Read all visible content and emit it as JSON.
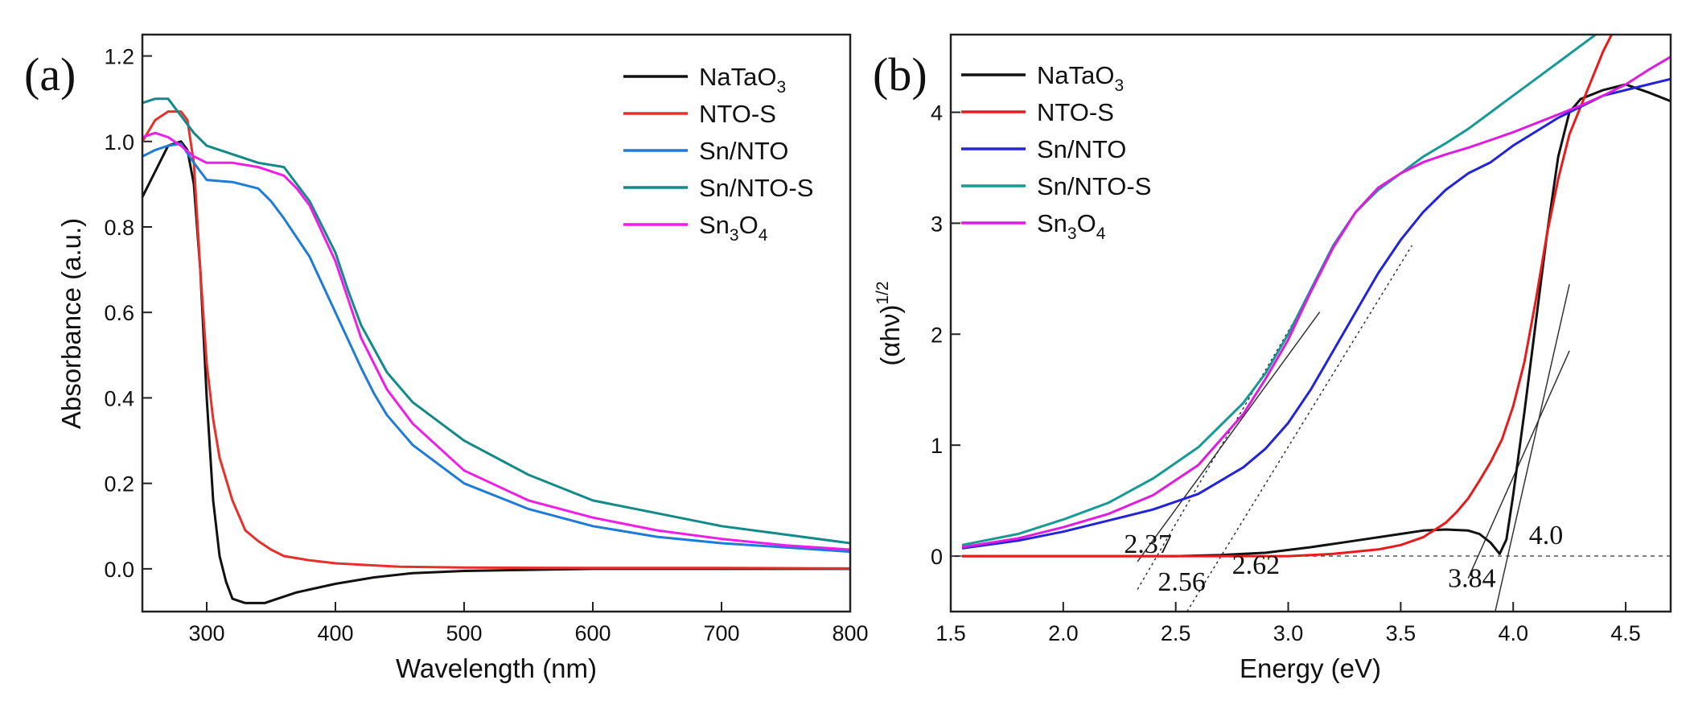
{
  "chart_data": [
    {
      "panel": "(a)",
      "type": "line",
      "xlabel": "Wavelength (nm)",
      "ylabel": "Absorbance (a.u.)",
      "xlim": [
        250,
        800
      ],
      "ylim": [
        -0.1,
        1.25
      ],
      "x_ticks": [
        300,
        400,
        500,
        600,
        700,
        800
      ],
      "y_ticks": [
        0.0,
        0.2,
        0.4,
        0.6,
        0.8,
        1.0,
        1.2
      ],
      "legend": "top-right",
      "series": [
        {
          "name": "NaTaO3",
          "label_main": "NaTaO",
          "label_sub": "3",
          "label_end": "",
          "color": "#111111",
          "x": [
            250,
            260,
            270,
            280,
            285,
            290,
            295,
            300,
            305,
            310,
            315,
            320,
            330,
            345,
            350,
            370,
            400,
            430,
            460,
            500,
            600,
            700,
            800
          ],
          "y": [
            0.87,
            0.93,
            0.99,
            1.0,
            0.98,
            0.9,
            0.7,
            0.4,
            0.16,
            0.03,
            -0.03,
            -0.07,
            -0.08,
            -0.08,
            -0.075,
            -0.055,
            -0.035,
            -0.02,
            -0.01,
            -0.005,
            0.0,
            0.0,
            0.0
          ]
        },
        {
          "name": "NTO-S",
          "label_main": "NTO-S",
          "label_sub": "",
          "label_end": "",
          "color": "#e8302a",
          "x": [
            250,
            260,
            270,
            280,
            285,
            290,
            295,
            300,
            305,
            310,
            320,
            330,
            340,
            350,
            360,
            380,
            400,
            430,
            450,
            500,
            600,
            700,
            800
          ],
          "y": [
            1.0,
            1.05,
            1.07,
            1.07,
            1.05,
            0.95,
            0.7,
            0.48,
            0.35,
            0.26,
            0.16,
            0.09,
            0.065,
            0.045,
            0.03,
            0.02,
            0.013,
            0.008,
            0.005,
            0.003,
            0.002,
            0.002,
            0.001
          ]
        },
        {
          "name": "Sn/NTO",
          "label_main": "Sn/NTO",
          "label_sub": "",
          "label_end": "",
          "color": "#1f7bd8",
          "x": [
            250,
            260,
            270,
            280,
            290,
            300,
            320,
            340,
            350,
            360,
            380,
            400,
            420,
            430,
            440,
            460,
            500,
            550,
            600,
            650,
            700,
            750,
            800
          ],
          "y": [
            0.965,
            0.98,
            0.99,
            0.995,
            0.95,
            0.91,
            0.905,
            0.89,
            0.86,
            0.82,
            0.73,
            0.6,
            0.47,
            0.41,
            0.36,
            0.29,
            0.2,
            0.14,
            0.1,
            0.075,
            0.06,
            0.05,
            0.04
          ]
        },
        {
          "name": "Sn/NTO-S",
          "label_main": "Sn/NTO-S",
          "label_sub": "",
          "label_end": "",
          "color": "#128a8a",
          "x": [
            250,
            260,
            270,
            280,
            290,
            300,
            320,
            340,
            360,
            370,
            380,
            400,
            410,
            420,
            440,
            460,
            500,
            550,
            600,
            650,
            700,
            750,
            800
          ],
          "y": [
            1.09,
            1.1,
            1.1,
            1.06,
            1.02,
            0.99,
            0.97,
            0.95,
            0.94,
            0.9,
            0.86,
            0.74,
            0.65,
            0.57,
            0.46,
            0.39,
            0.3,
            0.22,
            0.16,
            0.13,
            0.1,
            0.08,
            0.06
          ]
        },
        {
          "name": "Sn3O4",
          "label_main": "Sn",
          "label_sub": "3",
          "label_end": "O4",
          "color": "#ee1ee8",
          "x": [
            250,
            260,
            270,
            280,
            290,
            300,
            320,
            340,
            360,
            370,
            380,
            400,
            410,
            420,
            440,
            460,
            500,
            550,
            600,
            650,
            700,
            750,
            800
          ],
          "y": [
            1.01,
            1.02,
            1.01,
            0.99,
            0.965,
            0.95,
            0.95,
            0.94,
            0.92,
            0.89,
            0.85,
            0.72,
            0.63,
            0.54,
            0.42,
            0.34,
            0.23,
            0.16,
            0.12,
            0.09,
            0.07,
            0.055,
            0.045
          ]
        }
      ]
    },
    {
      "panel": "(b)",
      "type": "line",
      "xlabel": "Energy (eV)",
      "ylabel": "(αhν)",
      "ylabel_sup": "1/2",
      "xlim": [
        1.5,
        4.7
      ],
      "ylim": [
        -0.5,
        4.7
      ],
      "x_ticks": [
        "1.5",
        "2.0",
        "2.5",
        "3.0",
        "3.5",
        "4.0",
        "4.5"
      ],
      "y_ticks": [
        0,
        1,
        2,
        3,
        4
      ],
      "legend": "top-left",
      "series": [
        {
          "name": "NaTaO3",
          "label_main": "NaTaO",
          "label_sub": "3",
          "label_end": "",
          "color": "#111111",
          "x": [
            1.55,
            2.0,
            2.5,
            2.7,
            2.9,
            3.1,
            3.3,
            3.5,
            3.6,
            3.7,
            3.8,
            3.85,
            3.9,
            3.94,
            3.97,
            4.0,
            4.05,
            4.1,
            4.15,
            4.2,
            4.25,
            4.3,
            4.4,
            4.5,
            4.6,
            4.7
          ],
          "y": [
            0.0,
            0.0,
            0.0,
            0.01,
            0.03,
            0.08,
            0.14,
            0.2,
            0.23,
            0.24,
            0.23,
            0.2,
            0.12,
            0.02,
            0.15,
            0.55,
            1.3,
            2.1,
            2.9,
            3.6,
            4.0,
            4.12,
            4.2,
            4.25,
            4.18,
            4.1
          ]
        },
        {
          "name": "NTO-S",
          "label_main": "NTO-S",
          "label_sub": "",
          "label_end": "",
          "color": "#e81b1b",
          "x": [
            1.55,
            2.0,
            2.5,
            3.0,
            3.2,
            3.4,
            3.5,
            3.6,
            3.7,
            3.75,
            3.8,
            3.85,
            3.9,
            3.95,
            4.0,
            4.05,
            4.1,
            4.15,
            4.2,
            4.25,
            4.3,
            4.35,
            4.4,
            4.45
          ],
          "y": [
            0.0,
            0.0,
            0.0,
            0.0,
            0.02,
            0.06,
            0.1,
            0.17,
            0.3,
            0.4,
            0.52,
            0.68,
            0.85,
            1.05,
            1.35,
            1.75,
            2.3,
            2.9,
            3.4,
            3.8,
            4.05,
            4.3,
            4.55,
            4.75
          ]
        },
        {
          "name": "Sn/NTO",
          "label_main": "Sn/NTO",
          "label_sub": "",
          "label_end": "",
          "color": "#2323d9",
          "x": [
            1.55,
            1.8,
            2.0,
            2.2,
            2.4,
            2.6,
            2.8,
            2.9,
            3.0,
            3.1,
            3.2,
            3.3,
            3.4,
            3.5,
            3.6,
            3.7,
            3.8,
            3.9,
            4.0,
            4.2,
            4.4,
            4.6,
            4.7
          ],
          "y": [
            0.07,
            0.14,
            0.22,
            0.32,
            0.42,
            0.56,
            0.8,
            0.97,
            1.2,
            1.5,
            1.85,
            2.2,
            2.55,
            2.85,
            3.1,
            3.3,
            3.45,
            3.55,
            3.7,
            3.95,
            4.15,
            4.25,
            4.3
          ]
        },
        {
          "name": "Sn/NTO-S",
          "label_main": "Sn/NTO-S",
          "label_sub": "",
          "label_end": "",
          "color": "#169a96",
          "x": [
            1.55,
            1.8,
            2.0,
            2.2,
            2.4,
            2.6,
            2.8,
            2.9,
            3.0,
            3.1,
            3.2,
            3.3,
            3.4,
            3.5,
            3.6,
            3.7,
            3.8,
            3.9,
            4.0,
            4.1,
            4.2,
            4.3,
            4.4
          ],
          "y": [
            0.1,
            0.2,
            0.33,
            0.48,
            0.7,
            0.98,
            1.38,
            1.65,
            2.0,
            2.4,
            2.8,
            3.1,
            3.3,
            3.45,
            3.6,
            3.72,
            3.85,
            4.0,
            4.15,
            4.3,
            4.45,
            4.6,
            4.75
          ]
        },
        {
          "name": "Sn3O4",
          "label_main": "Sn",
          "label_sub": "3",
          "label_end": "O4",
          "color": "#e01be0",
          "x": [
            1.55,
            1.8,
            2.0,
            2.2,
            2.4,
            2.6,
            2.8,
            2.9,
            3.0,
            3.1,
            3.2,
            3.3,
            3.4,
            3.5,
            3.6,
            3.7,
            3.8,
            3.9,
            4.0,
            4.1,
            4.2,
            4.3,
            4.4,
            4.5,
            4.6,
            4.7
          ],
          "y": [
            0.08,
            0.16,
            0.26,
            0.38,
            0.55,
            0.82,
            1.28,
            1.6,
            1.95,
            2.38,
            2.78,
            3.1,
            3.32,
            3.45,
            3.55,
            3.62,
            3.68,
            3.75,
            3.82,
            3.9,
            3.98,
            4.06,
            4.15,
            4.25,
            4.38,
            4.5
          ]
        }
      ],
      "tangents": [
        {
          "from": [
            2.33,
            -0.05
          ],
          "to": [
            3.14,
            2.2
          ],
          "style": "solid"
        },
        {
          "from": [
            2.33,
            -0.3
          ],
          "to": [
            3.05,
            2.2
          ],
          "style": "dotted"
        },
        {
          "from": [
            2.55,
            -0.5
          ],
          "to": [
            3.55,
            2.8
          ],
          "style": "dotted"
        },
        {
          "from": [
            3.8,
            -0.2
          ],
          "to": [
            4.25,
            1.85
          ],
          "style": "solid"
        },
        {
          "from": [
            3.92,
            -0.5
          ],
          "to": [
            4.25,
            2.45
          ],
          "style": "solid"
        }
      ],
      "baseline": 0,
      "annotations": [
        {
          "text": "2.37",
          "x": 2.27,
          "y": 0.03
        },
        {
          "text": "2.56",
          "x": 2.42,
          "y": -0.31
        },
        {
          "text": "2.62",
          "x": 2.75,
          "y": -0.16
        },
        {
          "text": "3.84",
          "x": 3.71,
          "y": -0.28
        },
        {
          "text": "4.0",
          "x": 4.07,
          "y": 0.11
        }
      ]
    }
  ]
}
